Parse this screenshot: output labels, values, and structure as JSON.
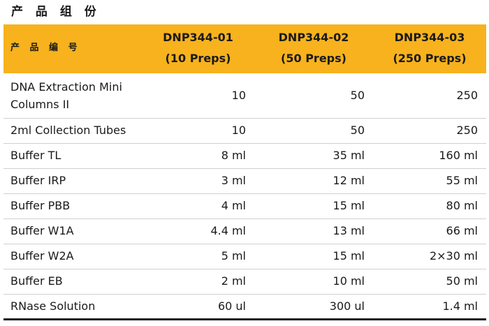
{
  "title": "产 品 组 份",
  "header": {
    "col0": "产 品 编 号",
    "cols": [
      {
        "code": "DNP344-01",
        "preps": "(10 Preps)"
      },
      {
        "code": "DNP344-02",
        "preps": "(50 Preps)"
      },
      {
        "code": "DNP344-03",
        "preps": "(250 Preps)"
      }
    ]
  },
  "rows": [
    {
      "name": "DNA Extraction Mini Columns II",
      "v1": "10",
      "v2": "50",
      "v3": "250"
    },
    {
      "name": "2ml Collection Tubes",
      "v1": "10",
      "v2": "50",
      "v3": "250"
    },
    {
      "name": "Buffer TL",
      "v1": "8 ml",
      "v2": "35 ml",
      "v3": "160 ml"
    },
    {
      "name": "Buffer IRP",
      "v1": "3 ml",
      "v2": "12 ml",
      "v3": "55 ml"
    },
    {
      "name": "Buffer PBB",
      "v1": "4 ml",
      "v2": "15 ml",
      "v3": "80 ml"
    },
    {
      "name": "Buffer W1A",
      "v1": "4.4 ml",
      "v2": "13 ml",
      "v3": "66 ml"
    },
    {
      "name": "Buffer W2A",
      "v1": "5 ml",
      "v2": "15 ml",
      "v3": "2×30 ml"
    },
    {
      "name": "Buffer EB",
      "v1": "2 ml",
      "v2": "10 ml",
      "v3": "50 ml"
    },
    {
      "name": "RNase Solution",
      "v1": "60 ul",
      "v2": "300 ul",
      "v3": "1.4 ml"
    }
  ]
}
